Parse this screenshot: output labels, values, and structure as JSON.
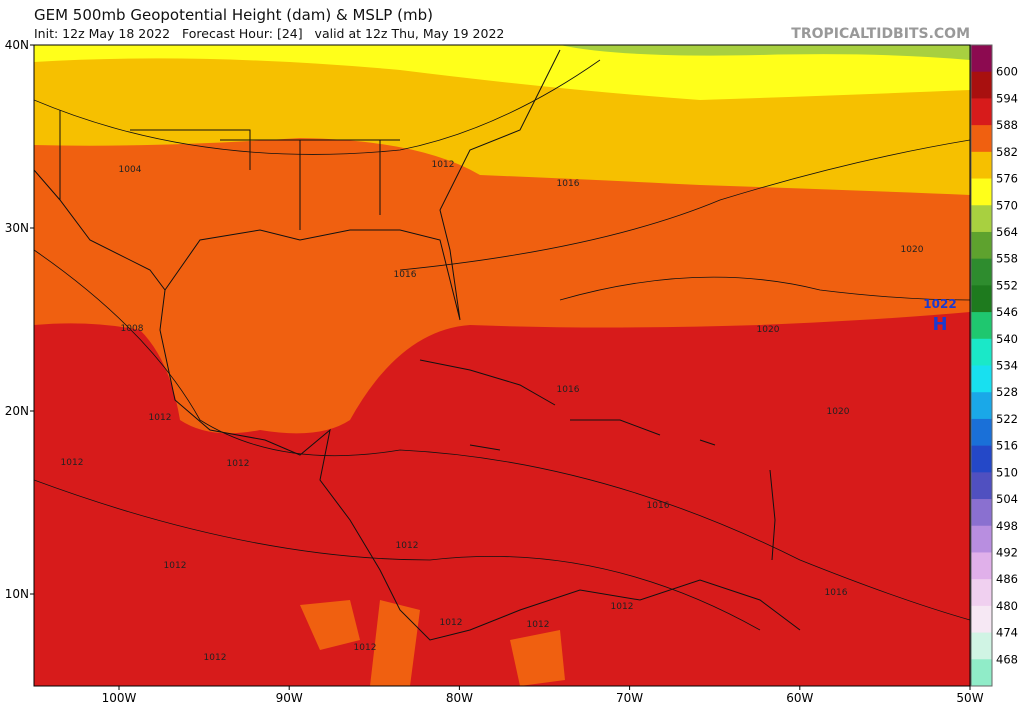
{
  "header": {
    "title": "GEM 500mb Geopotential Height (dam) & MSLP (mb)",
    "subtitle": "Init: 12z May 18 2022   Forecast Hour: [24]   valid at 12z Thu, May 19 2022",
    "watermark": "TROPICALTIDBITS.COM"
  },
  "latitude_labels": [
    "40N",
    "30N",
    "20N",
    "10N"
  ],
  "longitude_labels": [
    "100W",
    "90W",
    "80W",
    "70W",
    "60W",
    "50W"
  ],
  "colorbar": {
    "labels": [
      "600",
      "594",
      "588",
      "582",
      "576",
      "570",
      "564",
      "558",
      "552",
      "546",
      "540",
      "534",
      "528",
      "522",
      "516",
      "510",
      "504",
      "498",
      "492",
      "486",
      "480",
      "474",
      "468"
    ],
    "colors": [
      "#8c0a50",
      "#a8100f",
      "#d71b1b",
      "#f06010",
      "#f6c000",
      "#ffff1a",
      "#a8d040",
      "#5ea22e",
      "#2e8c2e",
      "#1e7a1e",
      "#1fc76f",
      "#1ae8c8",
      "#18e0f0",
      "#1aa8e8",
      "#1a70d8",
      "#2448c8",
      "#5050c0",
      "#8a70d0",
      "#b88ee0",
      "#e0b0ea",
      "#f0d0f0",
      "#f6e8f4",
      "#d0f4e4",
      "#90ecc8"
    ]
  },
  "isobar_labels": [
    "1004",
    "1012",
    "1016",
    "1016",
    "1020",
    "1008",
    "1020",
    "1016",
    "1012",
    "1012",
    "1020",
    "1012",
    "1016",
    "1012",
    "1012",
    "1016",
    "1012",
    "1012",
    "1012",
    "1012",
    "1012"
  ],
  "high": {
    "pressure": "1022",
    "letter": "H"
  }
}
